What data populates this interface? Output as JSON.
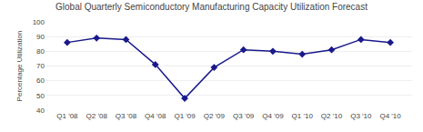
{
  "chart_data": {
    "type": "line",
    "title": "Global Quarterly Semiconductory Manufacturing Capacity Utilization Forecast",
    "ylabel": "Percentage Utilization",
    "categories": [
      "Q1 '08",
      "Q2 '08",
      "Q3 '08",
      "Q4 '08",
      "Q1 '09",
      "Q2 '09",
      "Q3 '09",
      "Q4 '09",
      "Q1 '10",
      "Q2 '10",
      "Q3 '10",
      "Q4 '10"
    ],
    "values": [
      86,
      89,
      88,
      71,
      48,
      69,
      81,
      80,
      78,
      81,
      88,
      86
    ],
    "color": "#1a1a8c",
    "marker": "diamond",
    "ylim": [
      40,
      100
    ],
    "yticks": [
      40,
      50,
      60,
      70,
      80,
      90,
      100
    ],
    "grid": true
  }
}
